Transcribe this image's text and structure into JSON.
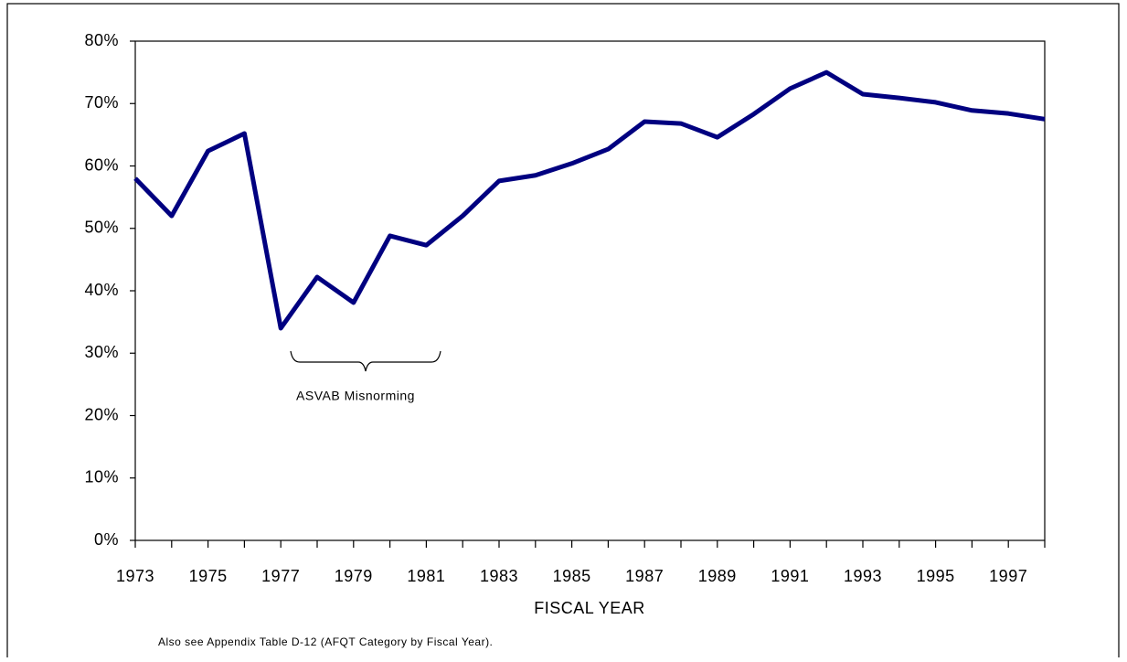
{
  "chart_data": {
    "type": "line",
    "x_label": "FISCAL YEAR",
    "annotation": "ASVAB Misnorming",
    "note": "Also see Appendix Table D-12 (AFQT Category by Fiscal Year).",
    "x": [
      1973,
      1974,
      1975,
      1976,
      1977,
      1978,
      1979,
      1980,
      1981,
      1982,
      1983,
      1984,
      1985,
      1986,
      1987,
      1988,
      1989,
      1990,
      1991,
      1992,
      1993,
      1994,
      1995,
      1996,
      1997,
      1998
    ],
    "series": [
      {
        "color": "#000080",
        "values": [
          58.0,
          52.0,
          62.4,
          65.2,
          34.0,
          42.2,
          38.1,
          48.8,
          47.3,
          52.0,
          57.6,
          58.5,
          60.4,
          62.7,
          67.1,
          66.8,
          64.6,
          68.3,
          72.4,
          75.0,
          71.5,
          70.9,
          70.2,
          68.9,
          68.4,
          67.5
        ]
      }
    ],
    "xlim": [
      1973,
      1998
    ],
    "xticks": [
      1973,
      1975,
      1977,
      1979,
      1981,
      1983,
      1985,
      1987,
      1989,
      1991,
      1993,
      1995,
      1997
    ],
    "ylim": [
      0,
      80
    ],
    "yticks": [
      {
        "value": 0,
        "label": "0%"
      },
      {
        "value": 10,
        "label": "10%"
      },
      {
        "value": 20,
        "label": "20%"
      },
      {
        "value": 30,
        "label": "30%"
      },
      {
        "value": 40,
        "label": "40%"
      },
      {
        "value": 50,
        "label": "50%"
      },
      {
        "value": 60,
        "label": "60%"
      },
      {
        "value": 70,
        "label": "70%"
      },
      {
        "value": 80,
        "label": "80%"
      }
    ],
    "grid": false
  }
}
